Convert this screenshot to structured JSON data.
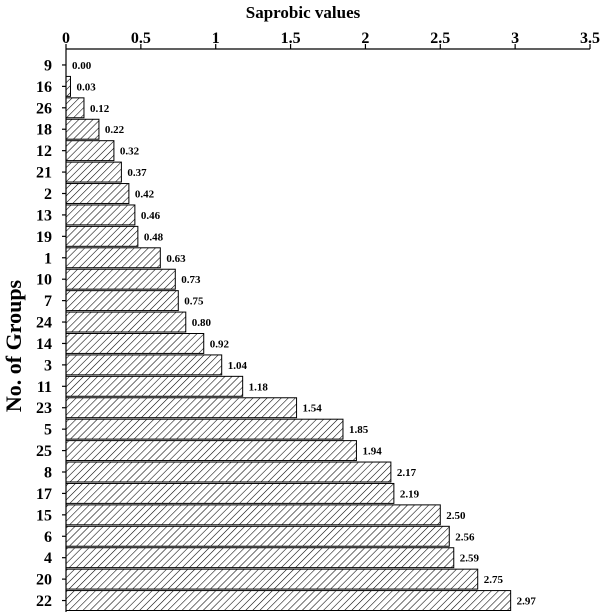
{
  "chart_data": {
    "type": "bar",
    "orientation": "horizontal",
    "title": "",
    "xlabel": "Saprobic values",
    "ylabel": "No. of Groups",
    "xlim": [
      0,
      3.5
    ],
    "x_ticks": [
      "0",
      "0.5",
      "1",
      "1.5",
      "2",
      "2.5",
      "3",
      "3.5"
    ],
    "x_axis_position": "top",
    "grid": false,
    "legend": "none",
    "bar_fill": "diagonal-hatch",
    "bar_color": "#000000",
    "categories": [
      "9",
      "16",
      "26",
      "18",
      "12",
      "21",
      "2",
      "13",
      "19",
      "1",
      "10",
      "7",
      "24",
      "14",
      "3",
      "11",
      "23",
      "5",
      "25",
      "8",
      "17",
      "15",
      "6",
      "4",
      "20",
      "22"
    ],
    "values": [
      0.0,
      0.03,
      0.12,
      0.22,
      0.32,
      0.37,
      0.42,
      0.46,
      0.48,
      0.63,
      0.73,
      0.75,
      0.8,
      0.92,
      1.04,
      1.18,
      1.54,
      1.85,
      1.94,
      2.17,
      2.19,
      2.5,
      2.56,
      2.59,
      2.75,
      2.97
    ],
    "data_labels": [
      "0.00",
      "0.03",
      "0.12",
      "0.22",
      "0.32",
      "0.37",
      "0.42",
      "0.46",
      "0.48",
      "0.63",
      "0.73",
      "0.75",
      "0.80",
      "0.92",
      "1.04",
      "1.18",
      "1.54",
      "1.85",
      "1.94",
      "2.17",
      "2.19",
      "2.50",
      "2.56",
      "2.59",
      "2.75",
      "2.97"
    ]
  }
}
